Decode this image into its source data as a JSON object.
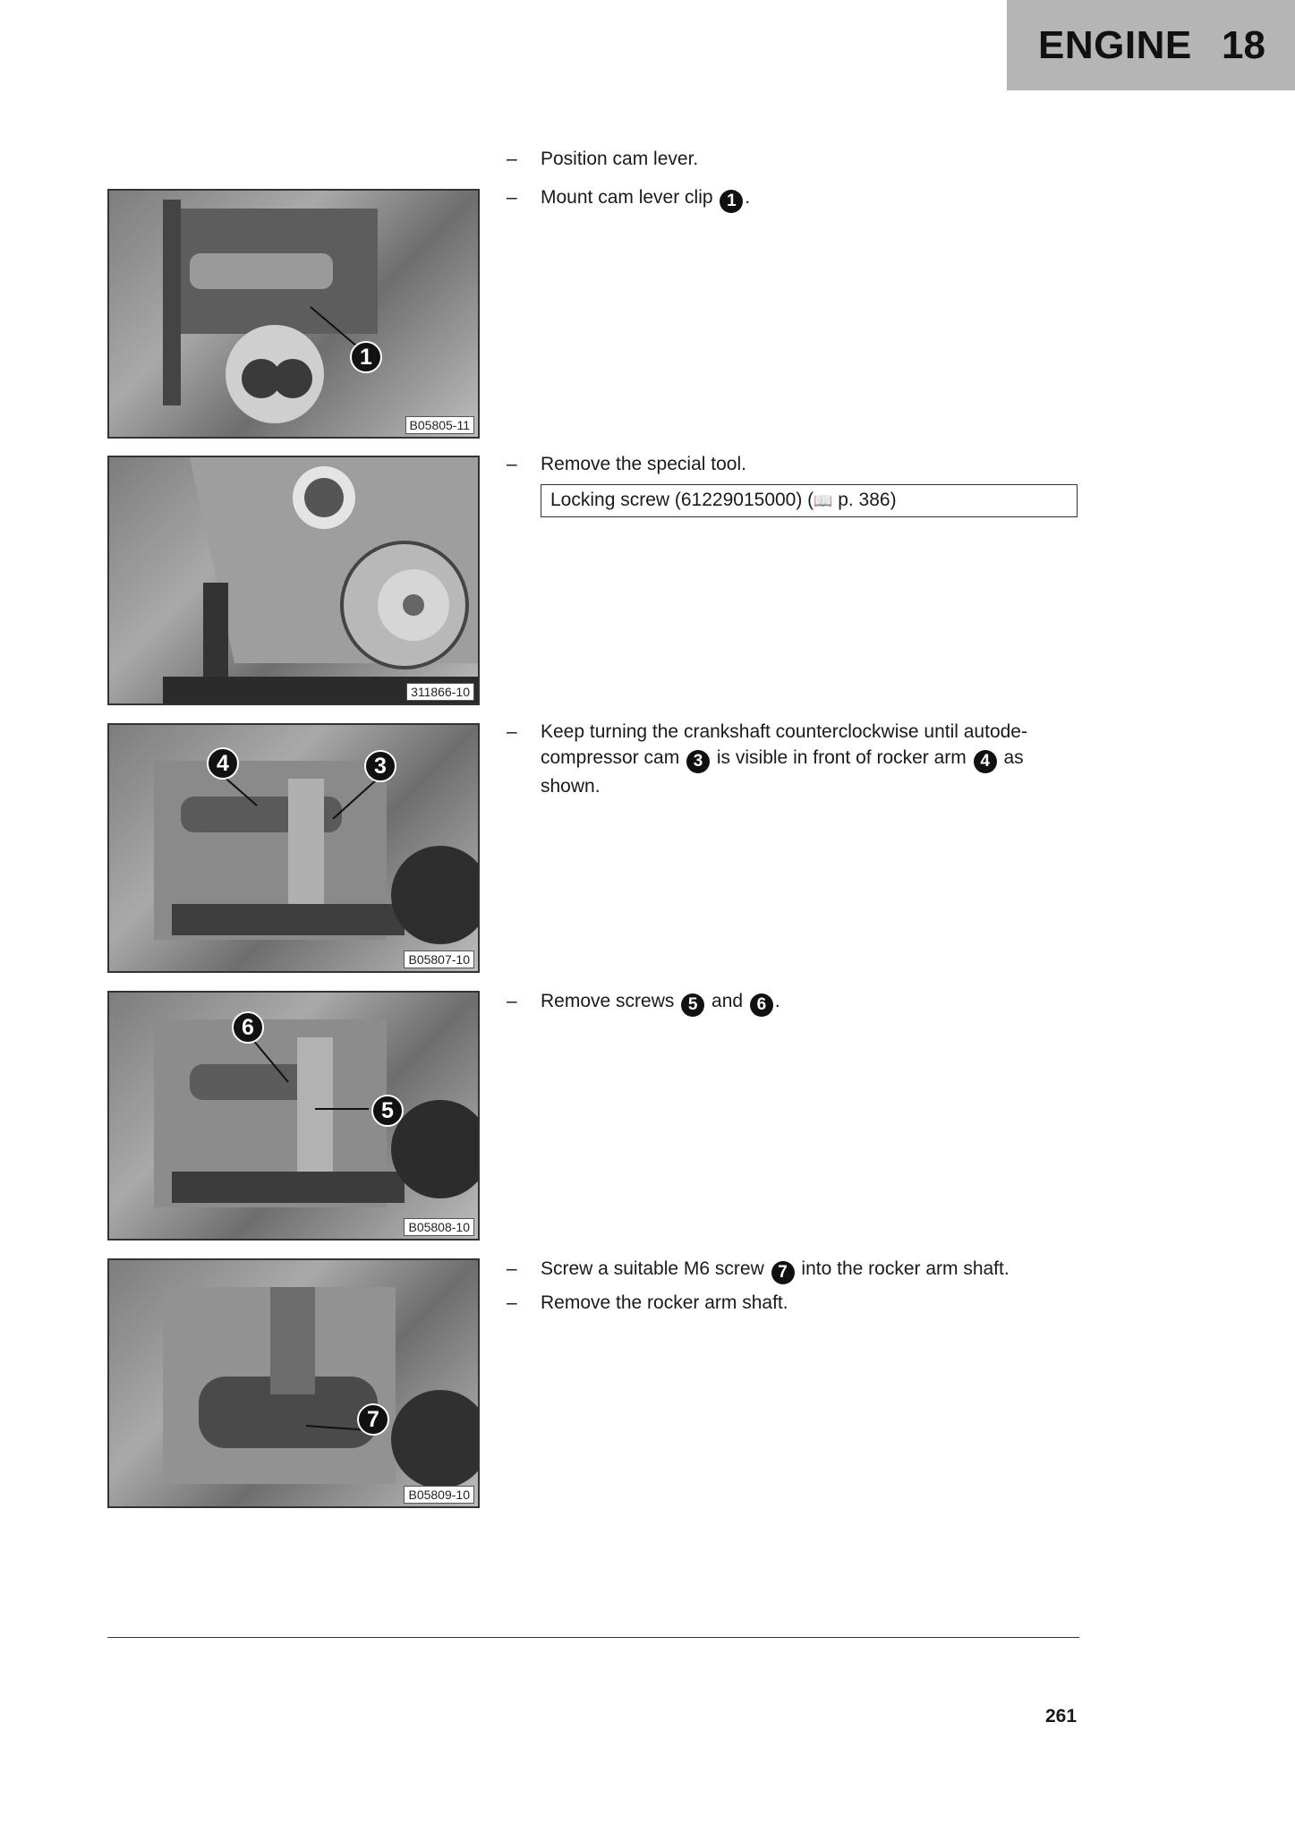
{
  "header": {
    "title": "ENGINE",
    "chapter": "18"
  },
  "figures": [
    {
      "id": "B05805-11",
      "markers": [
        "1"
      ]
    },
    {
      "id": "311866-10",
      "markers": []
    },
    {
      "id": "B05807-10",
      "markers": [
        "4",
        "3"
      ]
    },
    {
      "id": "B05808-10",
      "markers": [
        "6",
        "5"
      ]
    },
    {
      "id": "B05809-10",
      "markers": [
        "7"
      ]
    }
  ],
  "steps": {
    "s1": "Position cam lever.",
    "s2_pre": "Mount cam lever clip ",
    "s2_n": "1",
    "s2_post": ".",
    "s3": "Remove the special tool.",
    "tool": "Locking screw (61229015000) (",
    "tool_ref": "p. 386)",
    "s4_a": "Keep turning the crankshaft counterclockwise until autode-compressor cam ",
    "s4_n1": "3",
    "s4_b": " is visible in front of rocker arm ",
    "s4_n2": "4",
    "s4_c": " as shown.",
    "s5_a": "Remove screws ",
    "s5_n1": "5",
    "s5_b": " and ",
    "s5_n2": "6",
    "s5_c": ".",
    "s6_a": "Screw a suitable M6 screw ",
    "s6_n": "7",
    "s6_b": " into the rocker arm shaft.",
    "s7": "Remove the rocker arm shaft."
  },
  "dash": "–",
  "page_number": "261"
}
